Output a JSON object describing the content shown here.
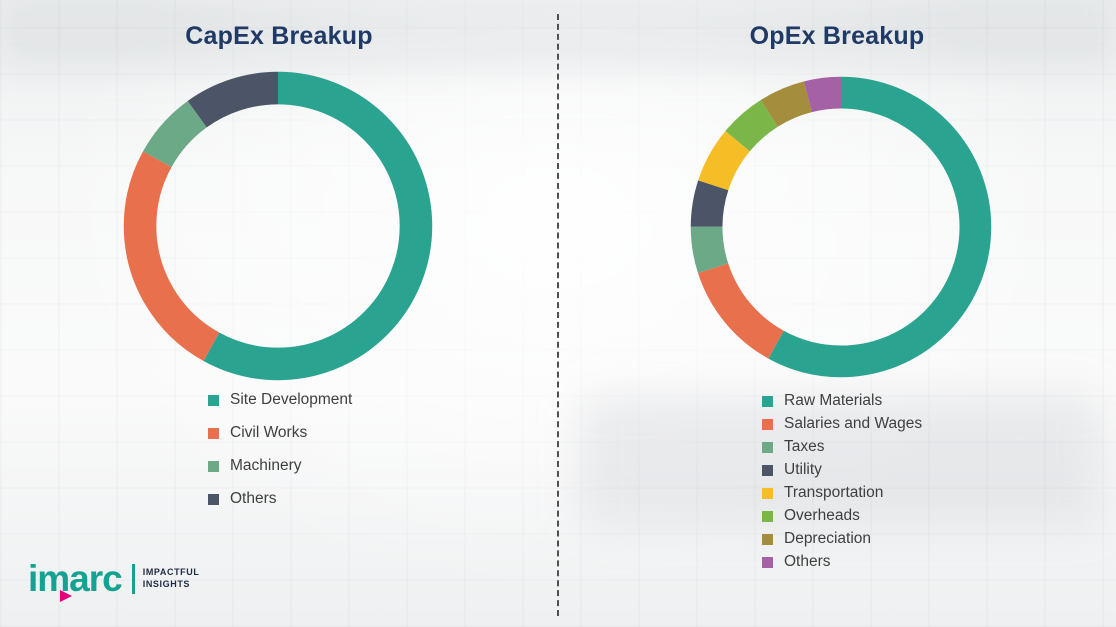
{
  "chart_data": [
    {
      "type": "pie",
      "donut": true,
      "title": "CapEx Breakup",
      "legend_position": "below",
      "data_labels_shown": false,
      "segments": [
        {
          "label": "Site Development",
          "value": 58,
          "color": "#2AA391"
        },
        {
          "label": "Civil Works",
          "value": 25,
          "color": "#E8704C"
        },
        {
          "label": "Machinery",
          "value": 7,
          "color": "#6CA987"
        },
        {
          "label": "Others",
          "value": 10,
          "color": "#4C5567"
        }
      ]
    },
    {
      "type": "pie",
      "donut": true,
      "title": "OpEx Breakup",
      "legend_position": "below",
      "data_labels_shown": false,
      "segments": [
        {
          "label": "Raw Materials",
          "value": 58,
          "color": "#2AA391"
        },
        {
          "label": "Salaries and Wages",
          "value": 12,
          "color": "#E8704C"
        },
        {
          "label": "Taxes",
          "value": 5,
          "color": "#6CA987"
        },
        {
          "label": "Utility",
          "value": 5,
          "color": "#4C5567"
        },
        {
          "label": "Transportation",
          "value": 6,
          "color": "#F6BE26"
        },
        {
          "label": "Overheads",
          "value": 5,
          "color": "#7AB648"
        },
        {
          "label": "Depreciation",
          "value": 5,
          "color": "#A48E3E"
        },
        {
          "label": "Others",
          "value": 4,
          "color": "#A561A5"
        }
      ]
    }
  ],
  "logo": {
    "brand": "imarc",
    "tagline_line1": "IMPACTFUL",
    "tagline_line2": "INSIGHTS",
    "brand_color": "#16A292",
    "accent_color": "#E6007E"
  }
}
